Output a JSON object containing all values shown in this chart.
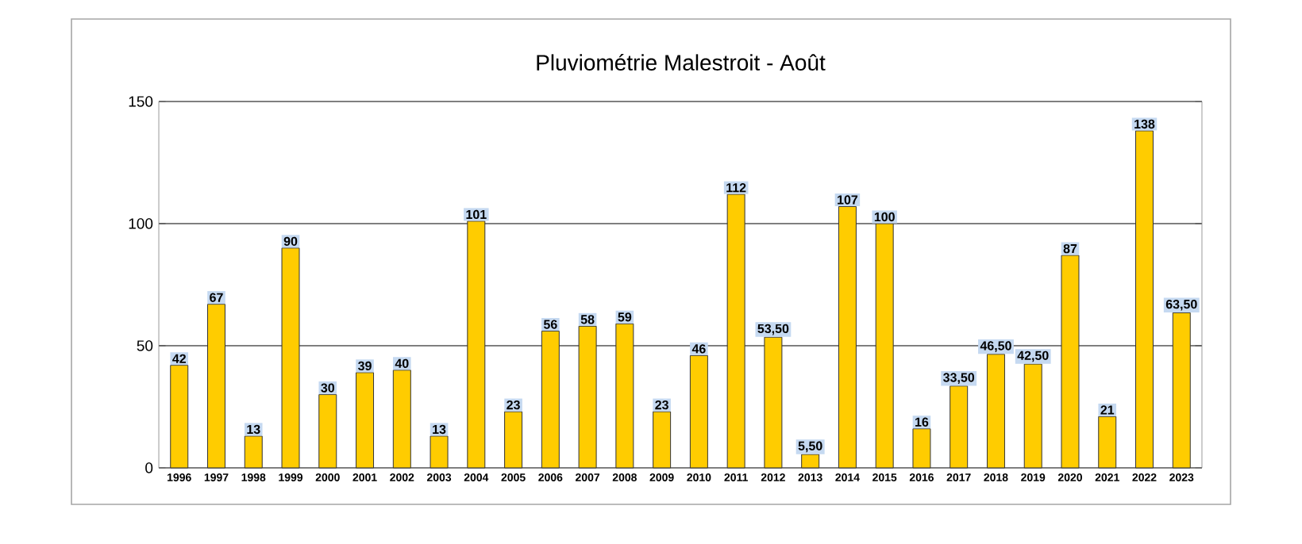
{
  "chart_data": {
    "type": "bar",
    "title": "Pluviométrie Malestroit - Août",
    "categories": [
      "1996",
      "1997",
      "1998",
      "1999",
      "2000",
      "2001",
      "2002",
      "2003",
      "2004",
      "2005",
      "2006",
      "2007",
      "2008",
      "2009",
      "2010",
      "2011",
      "2012",
      "2013",
      "2014",
      "2015",
      "2016",
      "2017",
      "2018",
      "2019",
      "2020",
      "2021",
      "2022",
      "2023"
    ],
    "values": [
      42,
      67,
      13,
      90,
      30,
      39,
      40,
      13,
      101,
      23,
      56,
      58,
      59,
      23,
      46,
      112,
      53.5,
      5.5,
      107,
      100,
      16,
      33.5,
      46.5,
      42.5,
      87,
      21,
      138,
      63.5
    ],
    "value_labels": [
      "42",
      "67",
      "13",
      "90",
      "30",
      "39",
      "40",
      "13",
      "101",
      "23",
      "56",
      "58",
      "59",
      "23",
      "46",
      "112",
      "53,50",
      "5,50",
      "107",
      "100",
      "16",
      "33,50",
      "46,50",
      "42,50",
      "87",
      "21",
      "138",
      "63,50"
    ],
    "color": "#ffcc00",
    "ylim": [
      0,
      150
    ],
    "yticks": [
      0,
      50,
      100,
      150
    ],
    "grid": "y"
  }
}
